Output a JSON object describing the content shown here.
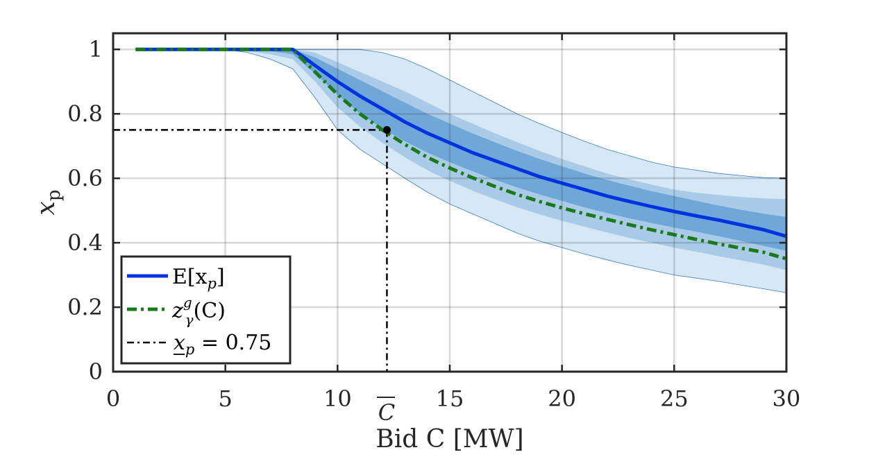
{
  "chart_data": {
    "type": "line",
    "title": "",
    "xlabel": "Bid C [MW]",
    "ylabel": "x_p",
    "ylabel_main": "x",
    "ylabel_sub": "p",
    "xlim": [
      0,
      30
    ],
    "ylim": [
      0,
      1.05
    ],
    "xticks": [
      0,
      5,
      10,
      15,
      20,
      25,
      30
    ],
    "yticks": [
      0,
      0.2,
      0.4,
      0.6,
      0.8,
      1
    ],
    "xtick_labels": [
      "0",
      "5",
      "10",
      "15",
      "20",
      "25",
      "30"
    ],
    "ytick_labels": [
      "0",
      "0.2",
      "0.4",
      "0.6",
      "0.8",
      "1"
    ],
    "grid": true,
    "x": [
      1,
      2,
      3,
      4,
      5,
      6,
      7,
      8,
      9,
      10,
      11,
      12,
      13,
      14,
      15,
      16,
      17,
      18,
      19,
      20,
      21,
      22,
      23,
      24,
      25,
      26,
      27,
      28,
      29,
      30
    ],
    "series": [
      {
        "name": "E[x_p]",
        "color": "#0033dd",
        "style": "solid",
        "values": [
          1,
          1,
          1,
          1,
          1,
          1,
          1,
          1,
          0.95,
          0.9,
          0.855,
          0.815,
          0.775,
          0.74,
          0.71,
          0.68,
          0.655,
          0.63,
          0.605,
          0.585,
          0.565,
          0.545,
          0.528,
          0.512,
          0.497,
          0.483,
          0.47,
          0.455,
          0.44,
          0.42
        ]
      },
      {
        "name": "z_γ^g(C)",
        "color": "#1a7a1a",
        "style": "dashdot",
        "values": [
          1,
          1,
          1,
          1,
          1,
          1,
          1,
          1,
          0.93,
          0.86,
          0.8,
          0.75,
          0.705,
          0.665,
          0.632,
          0.602,
          0.575,
          0.55,
          0.528,
          0.508,
          0.49,
          0.473,
          0.456,
          0.44,
          0.425,
          0.41,
          0.396,
          0.383,
          0.37,
          0.35
        ]
      }
    ],
    "bands": [
      {
        "name": "outer",
        "color": "#d6e7f5",
        "lower": [
          1,
          1,
          1,
          1,
          1,
          0.99,
          0.97,
          0.94,
          0.85,
          0.75,
          0.69,
          0.645,
          0.6,
          0.557,
          0.52,
          0.49,
          0.46,
          0.43,
          0.405,
          0.385,
          0.365,
          0.347,
          0.33,
          0.315,
          0.3,
          0.29,
          0.28,
          0.268,
          0.257,
          0.245
        ],
        "upper": [
          1,
          1,
          1,
          1,
          1,
          1,
          1,
          1,
          1,
          1,
          1,
          0.99,
          0.97,
          0.94,
          0.905,
          0.87,
          0.835,
          0.8,
          0.77,
          0.742,
          0.715,
          0.69,
          0.67,
          0.65,
          0.635,
          0.625,
          0.615,
          0.608,
          0.602,
          0.6
        ]
      },
      {
        "name": "middle",
        "color": "#a9cbe8",
        "lower": [
          1,
          1,
          1,
          1,
          1,
          0.995,
          0.985,
          0.97,
          0.9,
          0.82,
          0.76,
          0.71,
          0.665,
          0.625,
          0.592,
          0.562,
          0.535,
          0.51,
          0.488,
          0.468,
          0.45,
          0.432,
          0.415,
          0.4,
          0.385,
          0.372,
          0.358,
          0.345,
          0.332,
          0.315
        ],
        "upper": [
          1,
          1,
          1,
          1,
          1,
          1,
          1,
          1,
          0.99,
          0.96,
          0.93,
          0.9,
          0.87,
          0.835,
          0.8,
          0.77,
          0.74,
          0.712,
          0.685,
          0.66,
          0.637,
          0.615,
          0.597,
          0.58,
          0.565,
          0.555,
          0.548,
          0.542,
          0.538,
          0.535
        ]
      },
      {
        "name": "inner",
        "color": "#6fa8d8",
        "lower": [
          1,
          1,
          1,
          1,
          1,
          1,
          0.995,
          0.985,
          0.925,
          0.86,
          0.8,
          0.755,
          0.715,
          0.68,
          0.65,
          0.622,
          0.596,
          0.572,
          0.55,
          0.53,
          0.51,
          0.492,
          0.476,
          0.461,
          0.447,
          0.434,
          0.42,
          0.405,
          0.39,
          0.375
        ],
        "upper": [
          1,
          1,
          1,
          1,
          1,
          1,
          1,
          1,
          0.975,
          0.94,
          0.905,
          0.87,
          0.835,
          0.8,
          0.77,
          0.74,
          0.712,
          0.685,
          0.66,
          0.637,
          0.615,
          0.595,
          0.577,
          0.56,
          0.545,
          0.53,
          0.515,
          0.502,
          0.49,
          0.48
        ]
      }
    ],
    "threshold": {
      "name": "x_p = 0.75",
      "y": 0.75,
      "x": 12.2,
      "x_marker_label": "C"
    },
    "legend": {
      "position": "bottom-left",
      "entries": [
        {
          "label": "E[x_p]",
          "label_main": "E[x",
          "label_sub": "p",
          "label_tail": "]"
        },
        {
          "label": "z_γ^g(C)",
          "label_main": "z",
          "label_sup": "g",
          "label_sub": "γ",
          "label_tail": "(C)"
        },
        {
          "label": "x_p = 0.75",
          "label_main": "x",
          "label_sub": "p",
          "label_tail": " = 0.75"
        }
      ]
    }
  }
}
